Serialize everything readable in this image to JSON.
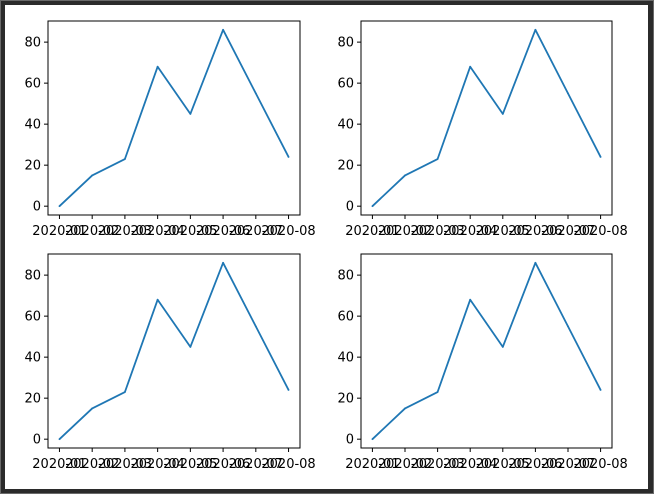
{
  "colors": {
    "line": "#1f77b4",
    "axes": "#000000",
    "background": "#ffffff",
    "frame": "#2b2b2b"
  },
  "chart_data": [
    {
      "type": "line",
      "title": "",
      "xlabel": "",
      "ylabel": "",
      "grid": false,
      "x": [
        "2020-01",
        "2020-02",
        "2020-03",
        "2020-04",
        "2020-05",
        "2020-06",
        "2020-07",
        "2020-08"
      ],
      "x_tick_labels": [
        "2020-01",
        "2020-02",
        "2020-03",
        "2020-04",
        "2020-05",
        "2020-06",
        "2020-07",
        "2020-08"
      ],
      "series": [
        {
          "values": [
            0,
            15,
            23,
            68,
            45,
            86,
            55,
            24
          ]
        }
      ],
      "ylim": [
        -4.3,
        90.3
      ],
      "yticks": [
        0,
        20,
        40,
        60,
        80
      ]
    },
    {
      "type": "line",
      "title": "",
      "xlabel": "",
      "ylabel": "",
      "grid": false,
      "x": [
        "2020-01",
        "2020-02",
        "2020-03",
        "2020-04",
        "2020-05",
        "2020-06",
        "2020-07",
        "2020-08"
      ],
      "x_tick_labels": [
        "2020-01",
        "2020-02",
        "2020-03",
        "2020-04",
        "2020-05",
        "2020-06",
        "2020-07",
        "2020-08"
      ],
      "series": [
        {
          "values": [
            0,
            15,
            23,
            68,
            45,
            86,
            55,
            24
          ]
        }
      ],
      "ylim": [
        -4.3,
        90.3
      ],
      "yticks": [
        0,
        20,
        40,
        60,
        80
      ]
    },
    {
      "type": "line",
      "title": "",
      "xlabel": "",
      "ylabel": "",
      "grid": false,
      "x": [
        "2020-01",
        "2020-02",
        "2020-03",
        "2020-04",
        "2020-05",
        "2020-06",
        "2020-07",
        "2020-08"
      ],
      "x_tick_labels": [
        "2020-01",
        "2020-02",
        "2020-03",
        "2020-04",
        "2020-05",
        "2020-06",
        "2020-07",
        "2020-08"
      ],
      "series": [
        {
          "values": [
            0,
            15,
            23,
            68,
            45,
            86,
            55,
            24
          ]
        }
      ],
      "ylim": [
        -4.3,
        90.3
      ],
      "yticks": [
        0,
        20,
        40,
        60,
        80
      ]
    },
    {
      "type": "line",
      "title": "",
      "xlabel": "",
      "ylabel": "",
      "grid": false,
      "x": [
        "2020-01",
        "2020-02",
        "2020-03",
        "2020-04",
        "2020-05",
        "2020-06",
        "2020-07",
        "2020-08"
      ],
      "x_tick_labels": [
        "2020-01",
        "2020-02",
        "2020-03",
        "2020-04",
        "2020-05",
        "2020-06",
        "2020-07",
        "2020-08"
      ],
      "series": [
        {
          "values": [
            0,
            15,
            23,
            68,
            45,
            86,
            55,
            24
          ]
        }
      ],
      "ylim": [
        -4.3,
        90.3
      ],
      "yticks": [
        0,
        20,
        40,
        60,
        80
      ]
    }
  ]
}
